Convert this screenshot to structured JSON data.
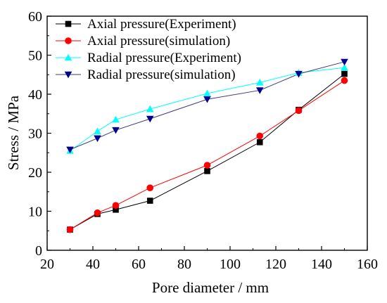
{
  "chart_data": {
    "type": "line",
    "title": "",
    "xlabel": "Pore diameter / mm",
    "ylabel": "Stress / MPa",
    "xlim": [
      20,
      160
    ],
    "ylim": [
      0,
      60
    ],
    "x_ticks": [
      20,
      40,
      60,
      80,
      100,
      120,
      140,
      160
    ],
    "y_ticks": [
      0,
      10,
      20,
      30,
      40,
      50,
      60
    ],
    "grid": false,
    "legend_position": "top-left",
    "x": [
      30,
      42,
      50,
      65,
      90,
      113,
      130,
      150
    ],
    "series": [
      {
        "name": "Axial pressure(Experiment)",
        "values": [
          5.3,
          9.3,
          10.4,
          12.7,
          20.3,
          27.7,
          36.0,
          45.2
        ],
        "color": "#000000",
        "line_color": "#000000",
        "marker": "square"
      },
      {
        "name": "Axial pressure(simulation)",
        "values": [
          5.3,
          9.6,
          11.5,
          16.0,
          21.8,
          29.3,
          35.8,
          43.5
        ],
        "color": "#ff0000",
        "line_color": "#ff0000",
        "marker": "circle"
      },
      {
        "name": "Radial pressure(Experiment)",
        "values": [
          25.5,
          30.5,
          33.5,
          36.2,
          40.2,
          43.0,
          45.5,
          46.8
        ],
        "color": "#00ffff",
        "line_color": "#00ffff",
        "marker": "triangle-up"
      },
      {
        "name": "Radial pressure(simulation)",
        "values": [
          25.8,
          28.7,
          30.8,
          33.7,
          38.7,
          41.0,
          45.2,
          48.3
        ],
        "color": "#00008b",
        "line_color": "#3c3c78",
        "marker": "triangle-down"
      }
    ]
  }
}
